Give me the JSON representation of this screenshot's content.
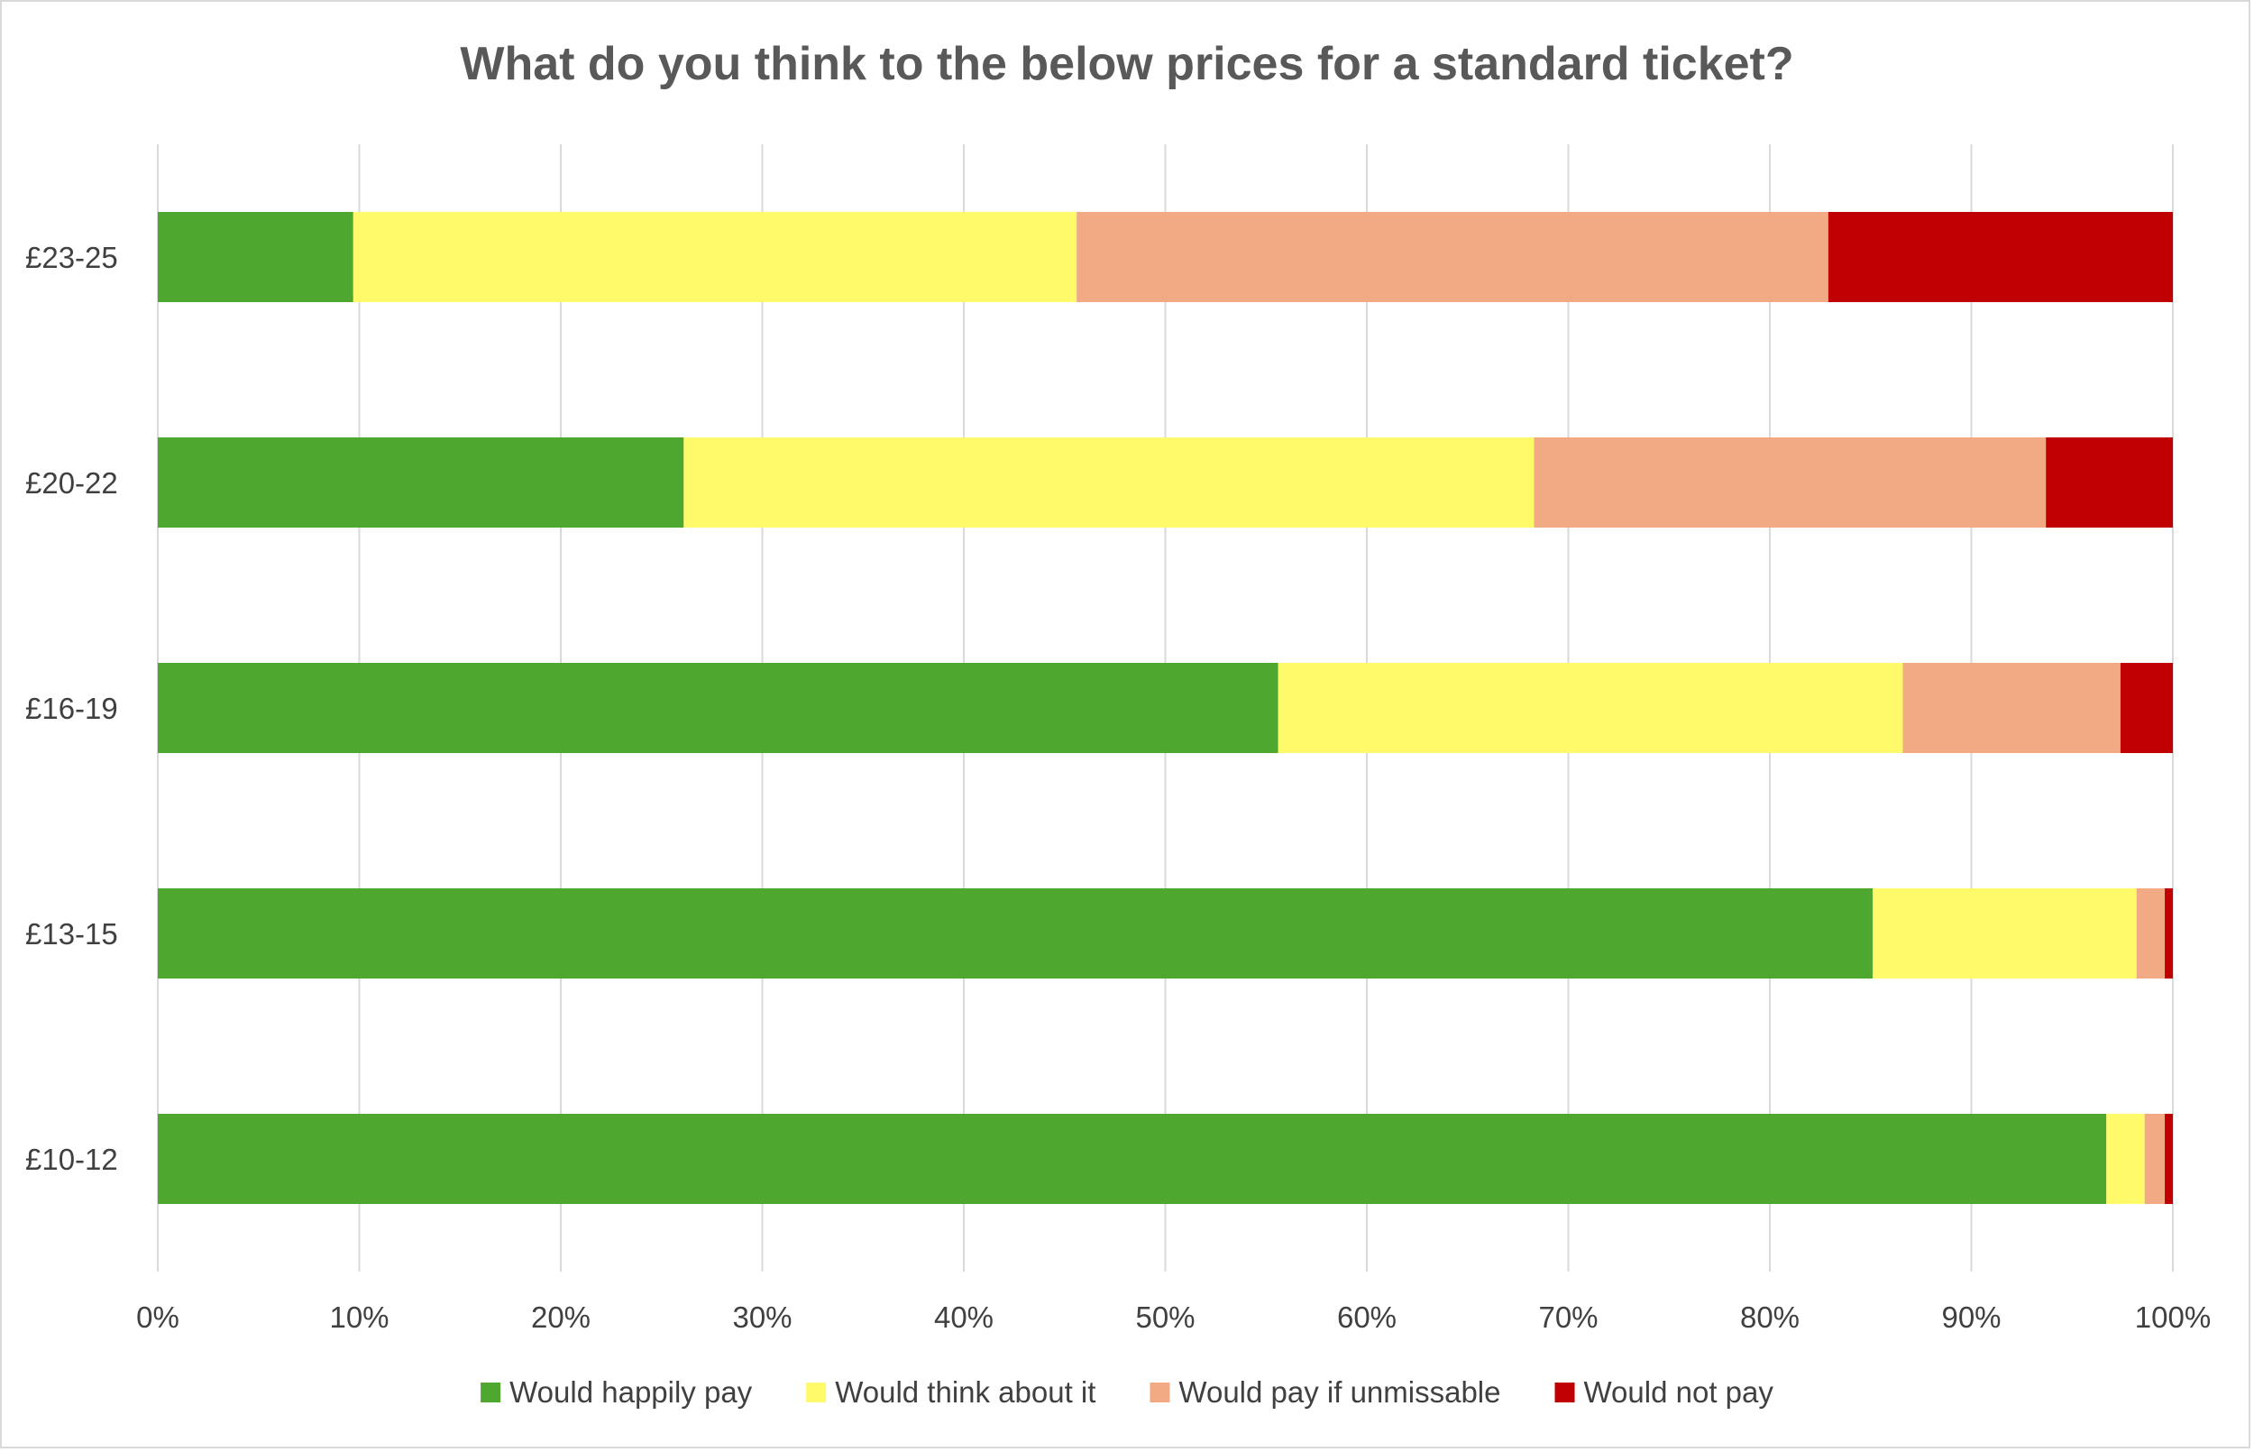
{
  "chart_data": {
    "type": "bar",
    "orientation": "horizontal",
    "stacked": "100%",
    "title": "What do you think to the below prices for a standard ticket?",
    "xlabel": "",
    "ylabel": "",
    "categories": [
      "£23-25",
      "£20-22",
      "£16-19",
      "£13-15",
      "£10-12"
    ],
    "series": [
      {
        "name": "Would happily pay",
        "color": "#4ea72e",
        "values": [
          9.7,
          26.1,
          55.6,
          85.1,
          96.7
        ]
      },
      {
        "name": "Would think about it",
        "color": "#fffa6a",
        "values": [
          35.9,
          42.2,
          31.0,
          13.1,
          1.9
        ]
      },
      {
        "name": "Would pay if unmissable",
        "color": "#f2aa84",
        "values": [
          37.3,
          25.4,
          10.8,
          1.4,
          1.0
        ]
      },
      {
        "name": "Would not pay",
        "color": "#c00000",
        "values": [
          17.1,
          6.3,
          2.6,
          0.4,
          0.4
        ]
      }
    ],
    "xlim": [
      0,
      100
    ],
    "xticks": [
      "0%",
      "10%",
      "20%",
      "30%",
      "40%",
      "50%",
      "60%",
      "70%",
      "80%",
      "90%",
      "100%"
    ],
    "grid": "vertical",
    "legend": "bottom"
  }
}
